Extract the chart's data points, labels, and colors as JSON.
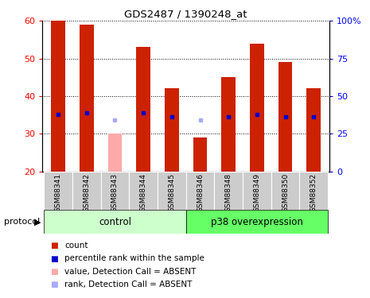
{
  "title": "GDS2487 / 1390248_at",
  "samples": [
    "GSM88341",
    "GSM88342",
    "GSM88343",
    "GSM88344",
    "GSM88345",
    "GSM88346",
    "GSM88348",
    "GSM88349",
    "GSM88350",
    "GSM88352"
  ],
  "bar_values": [
    60,
    59,
    null,
    53,
    42,
    29,
    45,
    54,
    49,
    42
  ],
  "bar_absent_values": [
    null,
    null,
    30,
    null,
    null,
    null,
    null,
    null,
    null,
    null
  ],
  "rank_values": [
    38,
    39,
    null,
    39,
    36,
    null,
    36,
    38,
    36,
    36
  ],
  "rank_absent_values": [
    null,
    null,
    34,
    null,
    null,
    34,
    null,
    null,
    null,
    null
  ],
  "bar_color": "#cc2200",
  "bar_absent_color": "#ffaaaa",
  "rank_color": "#0000cc",
  "rank_absent_color": "#aaaaff",
  "ylim_left": [
    20,
    60
  ],
  "ylim_right": [
    0,
    100
  ],
  "yticks_left": [
    20,
    30,
    40,
    50,
    60
  ],
  "yticks_right": [
    0,
    25,
    50,
    75,
    100
  ],
  "ytick_labels_right": [
    "0",
    "25",
    "50",
    "75",
    "100%"
  ],
  "control_label": "control",
  "p38_label": "p38 overexpression",
  "protocol_label": "protocol",
  "control_color": "#ccffcc",
  "p38_color": "#66ff66",
  "xtick_bg_color": "#cccccc",
  "legend_items": [
    {
      "color": "#cc2200",
      "label": "count"
    },
    {
      "color": "#0000cc",
      "label": "percentile rank within the sample"
    },
    {
      "color": "#ffaaaa",
      "label": "value, Detection Call = ABSENT"
    },
    {
      "color": "#aaaaff",
      "label": "rank, Detection Call = ABSENT"
    }
  ]
}
